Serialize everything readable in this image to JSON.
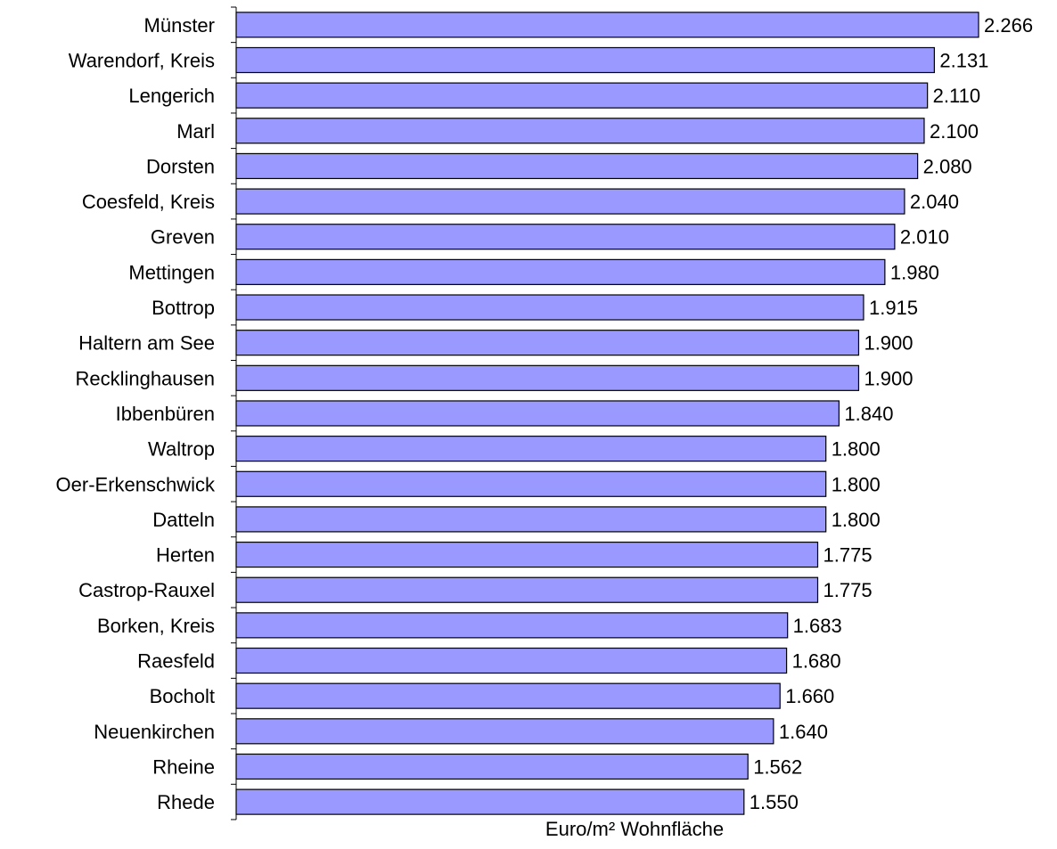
{
  "chart_data": {
    "type": "bar",
    "orientation": "horizontal",
    "categories": [
      "Münster",
      "Warendorf, Kreis",
      "Lengerich",
      "Marl",
      "Dorsten",
      "Coesfeld, Kreis",
      "Greven",
      "Mettingen",
      "Bottrop",
      "Haltern am See",
      "Recklinghausen",
      "Ibbenbüren",
      "Waltrop",
      "Oer-Erkenschwick",
      "Datteln",
      "Herten",
      "Castrop-Rauxel",
      "Borken, Kreis",
      "Raesfeld",
      "Bocholt",
      "Neuenkirchen",
      "Rheine",
      "Rhede"
    ],
    "values": [
      2266,
      2131,
      2110,
      2100,
      2080,
      2040,
      2010,
      1980,
      1915,
      1900,
      1900,
      1840,
      1800,
      1800,
      1800,
      1775,
      1775,
      1683,
      1680,
      1660,
      1640,
      1562,
      1550
    ],
    "value_labels": [
      "2.266",
      "2.131",
      "2.110",
      "2.100",
      "2.080",
      "2.040",
      "2.010",
      "1.980",
      "1.915",
      "1.900",
      "1.900",
      "1.840",
      "1.800",
      "1.800",
      "1.800",
      "1.775",
      "1.775",
      "1.683",
      "1.680",
      "1.660",
      "1.640",
      "1.562",
      "1.550"
    ],
    "title": "",
    "xlabel": "Euro/m² Wohnfläche",
    "ylabel": "",
    "xlim": [
      0,
      2266
    ],
    "grid": false,
    "legend": "none",
    "bar_color": "#9999ff"
  }
}
